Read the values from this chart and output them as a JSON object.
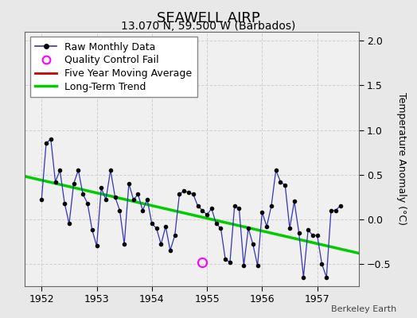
{
  "title": "SEAWELL AIRP",
  "subtitle": "13.070 N, 59.500 W (Barbados)",
  "ylabel": "Temperature Anomaly (°C)",
  "xlabel_bottom": "Berkeley Earth",
  "bg_color": "#e8e8e8",
  "plot_bg_color": "#f0f0f0",
  "ylim": [
    -0.75,
    2.1
  ],
  "yticks": [
    -0.5,
    0,
    0.5,
    1.0,
    1.5,
    2.0
  ],
  "xlim": [
    1951.7,
    1957.75
  ],
  "xticks": [
    1952,
    1953,
    1954,
    1955,
    1956,
    1957
  ],
  "raw_x": [
    1952.0,
    1952.083,
    1952.167,
    1952.25,
    1952.333,
    1952.417,
    1952.5,
    1952.583,
    1952.667,
    1952.75,
    1952.833,
    1952.917,
    1953.0,
    1953.083,
    1953.167,
    1953.25,
    1953.333,
    1953.417,
    1953.5,
    1953.583,
    1953.667,
    1953.75,
    1953.833,
    1953.917,
    1954.0,
    1954.083,
    1954.167,
    1954.25,
    1954.333,
    1954.417,
    1954.5,
    1954.583,
    1954.667,
    1954.75,
    1954.833,
    1954.917,
    1955.0,
    1955.083,
    1955.167,
    1955.25,
    1955.333,
    1955.417,
    1955.5,
    1955.583,
    1955.667,
    1955.75,
    1955.833,
    1955.917,
    1956.0,
    1956.083,
    1956.167,
    1956.25,
    1956.333,
    1956.417,
    1956.5,
    1956.583,
    1956.667,
    1956.75,
    1956.833,
    1956.917,
    1957.0,
    1957.083,
    1957.167,
    1957.25,
    1957.333,
    1957.417
  ],
  "raw_y": [
    0.22,
    0.85,
    0.9,
    0.42,
    0.55,
    0.18,
    -0.05,
    0.4,
    0.55,
    0.28,
    0.18,
    -0.12,
    -0.3,
    0.35,
    0.22,
    0.55,
    0.25,
    0.1,
    -0.28,
    0.4,
    0.22,
    0.28,
    0.1,
    0.22,
    -0.05,
    -0.1,
    -0.28,
    -0.08,
    -0.35,
    -0.18,
    0.28,
    0.32,
    0.3,
    0.28,
    0.15,
    0.1,
    0.05,
    0.12,
    -0.05,
    -0.1,
    -0.45,
    -0.48,
    0.15,
    0.12,
    -0.52,
    -0.1,
    -0.28,
    -0.52,
    0.08,
    -0.08,
    0.15,
    0.55,
    0.42,
    0.38,
    -0.1,
    0.2,
    -0.15,
    -0.65,
    -0.12,
    -0.18,
    -0.18,
    -0.5,
    -0.65,
    0.1,
    0.1,
    0.15
  ],
  "qc_fail_x": [
    1954.917
  ],
  "qc_fail_y": [
    -0.48
  ],
  "trend_x": [
    1951.7,
    1957.75
  ],
  "trend_y": [
    0.48,
    -0.38
  ],
  "raw_color": "#3333bb",
  "marker_color": "#000000",
  "trend_color": "#00cc00",
  "mavg_color": "#cc0000",
  "qc_color": "#ff00ff",
  "grid_color": "#d0d0d0",
  "title_fontsize": 13,
  "subtitle_fontsize": 10,
  "label_fontsize": 9,
  "tick_fontsize": 9,
  "legend_fontsize": 9
}
